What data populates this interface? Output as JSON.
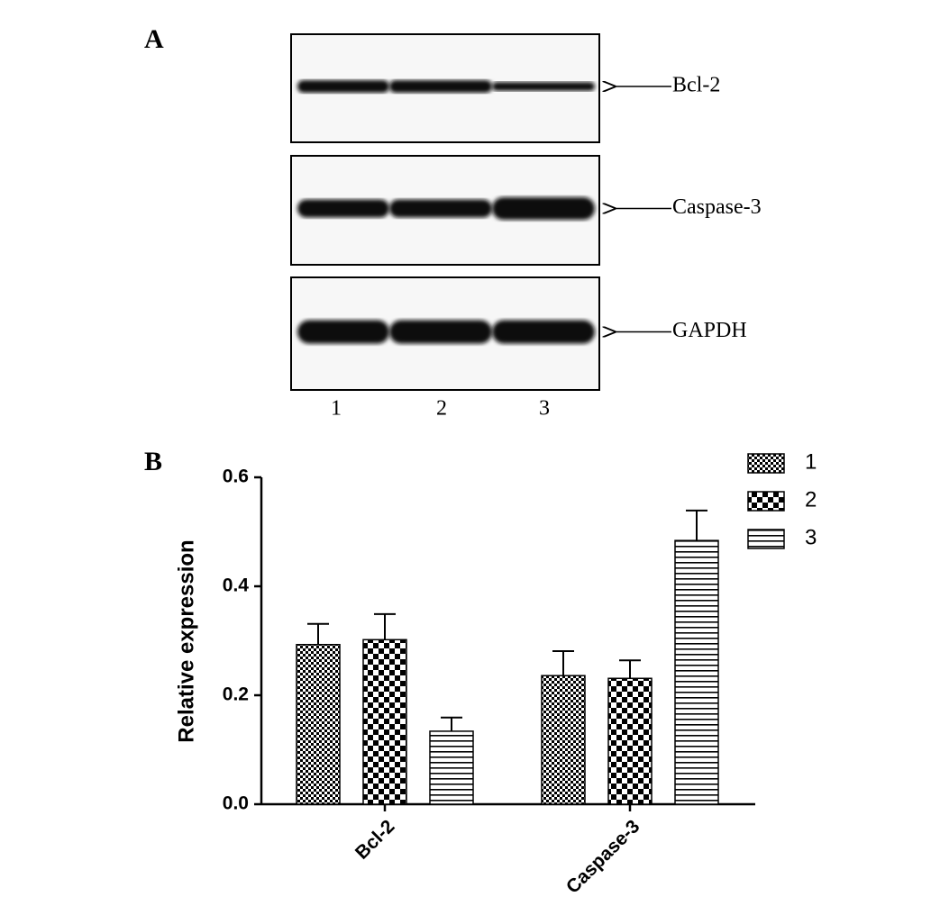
{
  "panel_a": {
    "label": "A",
    "bands": [
      "Bcl-2",
      "Caspase-3",
      "GAPDH"
    ],
    "lanes": [
      "1",
      "2",
      "3"
    ]
  },
  "chart_data": {
    "type": "bar",
    "panel_label": "B",
    "y_label": "Relative expression",
    "categories": [
      "Bcl-2",
      "Caspase-3"
    ],
    "series": [
      {
        "name": "1",
        "color": "#000000",
        "pattern": "fine-checker",
        "values": [
          0.293,
          0.236
        ],
        "errors": [
          0.038,
          0.045
        ]
      },
      {
        "name": "2",
        "color": "#000000",
        "pattern": "checker",
        "values": [
          0.302,
          0.231
        ],
        "errors": [
          0.047,
          0.033
        ]
      },
      {
        "name": "3",
        "color": "#000000",
        "pattern": "horizontal-lines",
        "values": [
          0.134,
          0.484
        ],
        "errors": [
          0.025,
          0.055
        ]
      }
    ],
    "ylim": [
      0,
      0.6
    ],
    "yticks": [
      {
        "value": 0,
        "label": "0.0"
      },
      0.2,
      0.4,
      0.6
    ]
  }
}
